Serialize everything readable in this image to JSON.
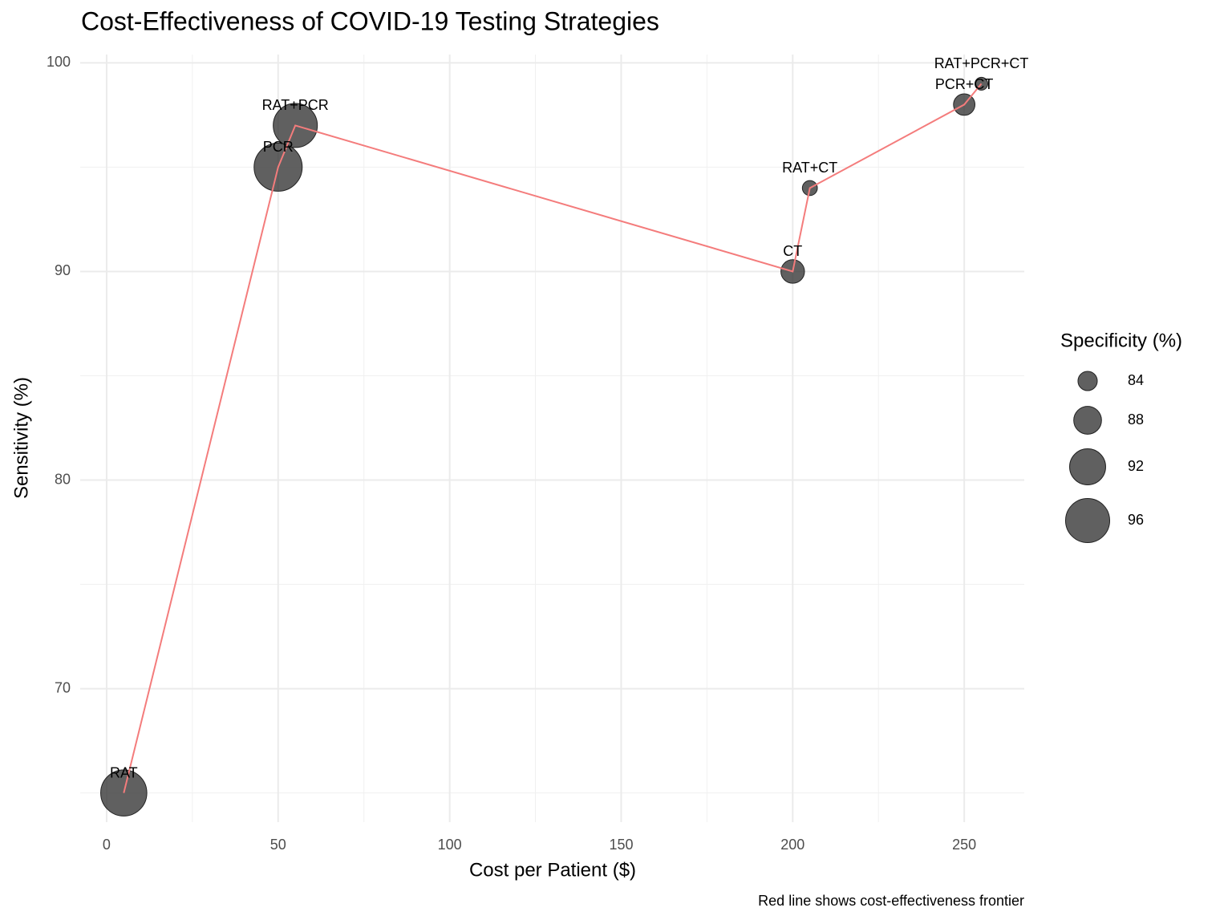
{
  "chart_data": {
    "type": "scatter",
    "title": "Cost-Effectiveness of COVID-19 Testing Strategies",
    "x_label": "Cost per Patient ($)",
    "y_label": "Sensitivity (%)",
    "caption": "Red line shows cost-effectiveness frontier",
    "labels": [
      "RAT",
      "PCR",
      "RAT+PCR",
      "CT",
      "RAT+CT",
      "PCR+CT",
      "RAT+PCR+CT"
    ],
    "x": [
      5,
      50,
      55,
      200,
      205,
      250,
      255
    ],
    "y": [
      65,
      95,
      97,
      90,
      94,
      98,
      99
    ],
    "sizes": [
      97,
      98,
      96,
      86,
      82,
      85,
      81
    ],
    "color": "#333333",
    "line_color": "#F47C7C",
    "xlim": [
      -7.7,
      267.5
    ],
    "ylim": [
      63.6,
      100.4
    ],
    "xticks": [
      0,
      50,
      100,
      150,
      200,
      250
    ],
    "yticks": [
      70,
      80,
      90,
      100
    ],
    "grid": true,
    "size_legend": {
      "title": "Specificity (%)",
      "breaks": [
        84,
        88,
        92,
        96
      ]
    }
  }
}
